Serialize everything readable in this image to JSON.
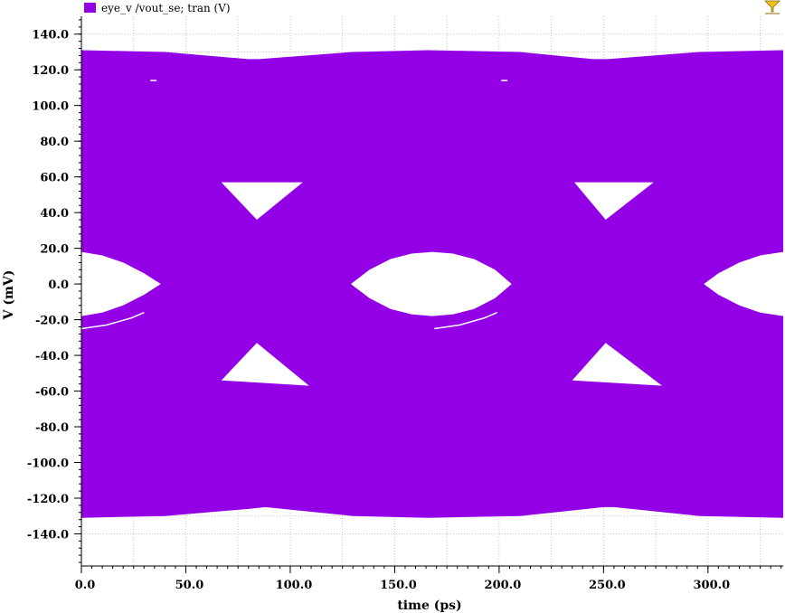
{
  "chart_data": {
    "type": "line",
    "title": "",
    "xlabel": "time (ps)",
    "ylabel": "V (mV)",
    "xlim": [
      0,
      336
    ],
    "ylim": [
      -158,
      150
    ],
    "xticks": [
      0,
      50,
      100,
      150,
      200,
      250,
      300
    ],
    "xtick_labels": [
      "0.0",
      "50.0",
      "100.0",
      "150.0",
      "200.0",
      "250.0",
      "300.0"
    ],
    "yticks": [
      140,
      120,
      100,
      80,
      60,
      40,
      20,
      0,
      -20,
      -40,
      -60,
      -80,
      -100,
      -120,
      -140
    ],
    "ytick_labels": [
      "140.0",
      "120.0",
      "100.0",
      "80.0",
      "60.0",
      "40.0",
      "20.0",
      "0.0",
      "-20.0",
      "-40.0",
      "-60.0",
      "-80.0",
      "-100.0",
      "-120.0",
      "-140.0"
    ],
    "grid": true,
    "legend_position": "top-left",
    "series": [
      {
        "name": "eye_v /vout_se; tran (V)",
        "color": "#9400e6",
        "eye_style": true,
        "envelope_top": [
          [
            0,
            131
          ],
          [
            40,
            130
          ],
          [
            80,
            126
          ],
          [
            85,
            126
          ],
          [
            130,
            130
          ],
          [
            166,
            131
          ],
          [
            210,
            130
          ],
          [
            245,
            126
          ],
          [
            252,
            126
          ],
          [
            296,
            130
          ],
          [
            336,
            131
          ]
        ],
        "envelope_bottom": [
          [
            0,
            -131
          ],
          [
            40,
            -130
          ],
          [
            80,
            -126
          ],
          [
            88,
            -125
          ],
          [
            130,
            -130
          ],
          [
            166,
            -131
          ],
          [
            210,
            -130
          ],
          [
            250,
            -125
          ],
          [
            255,
            -125
          ],
          [
            296,
            -130
          ],
          [
            336,
            -131
          ]
        ],
        "eye_openings": [
          [
            [
              0,
              18
            ],
            [
              10,
              16
            ],
            [
              20,
              12
            ],
            [
              30,
              6
            ],
            [
              38,
              0
            ],
            [
              30,
              -6
            ],
            [
              20,
              -12
            ],
            [
              10,
              -16
            ],
            [
              0,
              -18
            ]
          ],
          [
            [
              129,
              0
            ],
            [
              138,
              8
            ],
            [
              148,
              14
            ],
            [
              158,
              17
            ],
            [
              168,
              18
            ],
            [
              178,
              17
            ],
            [
              188,
              14
            ],
            [
              198,
              8
            ],
            [
              206,
              0
            ],
            [
              198,
              -8
            ],
            [
              188,
              -14
            ],
            [
              178,
              -17
            ],
            [
              168,
              -18
            ],
            [
              158,
              -17
            ],
            [
              148,
              -14
            ],
            [
              138,
              -8
            ]
          ],
          [
            [
              298,
              0
            ],
            [
              305,
              6
            ],
            [
              315,
              12
            ],
            [
              325,
              16
            ],
            [
              336,
              18
            ],
            [
              336,
              -18
            ],
            [
              325,
              -16
            ],
            [
              315,
              -12
            ],
            [
              305,
              -6
            ]
          ],
          [
            [
              67,
              57
            ],
            [
              106,
              57
            ],
            [
              84,
              36
            ]
          ],
          [
            [
              236,
              57
            ],
            [
              274,
              57
            ],
            [
              251,
              36
            ]
          ],
          [
            [
              67,
              -54
            ],
            [
              109,
              -57
            ],
            [
              84,
              -33
            ]
          ],
          [
            [
              235,
              -54
            ],
            [
              278,
              -57
            ],
            [
              251,
              -33
            ]
          ]
        ],
        "glitches": [
          [
            [
              33,
              114
            ],
            [
              36,
              114
            ]
          ],
          [
            [
              201,
              114
            ],
            [
              204,
              114
            ]
          ],
          [
            [
              0,
              -25
            ],
            [
              12,
              -23
            ],
            [
              24,
              -19
            ],
            [
              30,
              -16
            ]
          ],
          [
            [
              169,
              -25
            ],
            [
              181,
              -23
            ],
            [
              193,
              -19
            ],
            [
              199,
              -16
            ]
          ]
        ]
      }
    ],
    "marker_icon": "funnel-icon",
    "marker_color": "#f0c020"
  }
}
